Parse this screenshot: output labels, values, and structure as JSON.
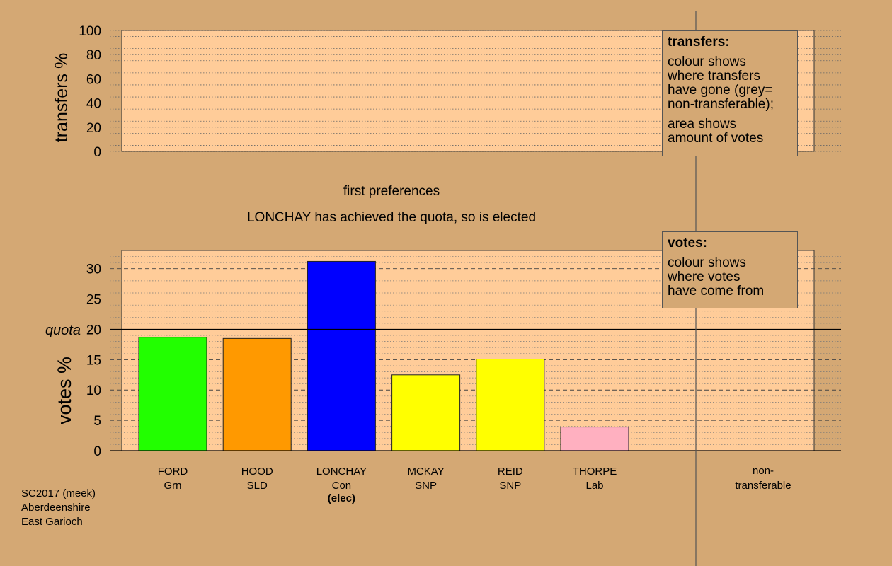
{
  "colors": {
    "background": "#d4a874",
    "plot_bg": "#ffcc99",
    "grid": "#666666",
    "axis": "#000000"
  },
  "texts": {
    "stage_label": "first preferences",
    "status_line": "LONCHAY has achieved the quota, so is elected",
    "quota_label": "quota",
    "nontransferable_line1": "non-",
    "nontransferable_line2": "transferable"
  },
  "transfers_box": {
    "title": "transfers:",
    "line1": "colour shows",
    "line2": "where transfers",
    "line3": "have gone (grey=",
    "line4": "non-transferable);",
    "line5": "area shows",
    "line6": "amount of votes"
  },
  "votes_box": {
    "title": "votes:",
    "line1": "colour shows",
    "line2": "where votes",
    "line3": "have come from"
  },
  "source": {
    "line1": "SC2017 (meek)",
    "line2": "Aberdeenshire",
    "line3": "East Garioch"
  },
  "chart_data": [
    {
      "type": "bar",
      "ylabel": "transfers %",
      "ylim": [
        0,
        100
      ],
      "yticks": [
        0,
        20,
        40,
        60,
        80,
        100
      ],
      "grid": true,
      "series": []
    },
    {
      "type": "bar",
      "ylabel": "votes %",
      "ylim": [
        0,
        33
      ],
      "yticks": [
        0,
        5,
        10,
        15,
        20,
        25,
        30
      ],
      "quota": 20,
      "grid": true,
      "categories": [
        {
          "name": "FORD",
          "party": "Grn",
          "value": 18.7,
          "color": "#22ff00",
          "note": ""
        },
        {
          "name": "HOOD",
          "party": "SLD",
          "value": 18.5,
          "color": "#ff9900",
          "note": ""
        },
        {
          "name": "LONCHAY",
          "party": "Con",
          "value": 31.2,
          "color": "#0000ff",
          "note": "(elec)"
        },
        {
          "name": "MCKAY",
          "party": "SNP",
          "value": 12.5,
          "color": "#ffff00",
          "note": ""
        },
        {
          "name": "REID",
          "party": "SNP",
          "value": 15.1,
          "color": "#ffff00",
          "note": ""
        },
        {
          "name": "THORPE",
          "party": "Lab",
          "value": 3.9,
          "color": "#ffb0c0",
          "note": ""
        }
      ]
    }
  ]
}
